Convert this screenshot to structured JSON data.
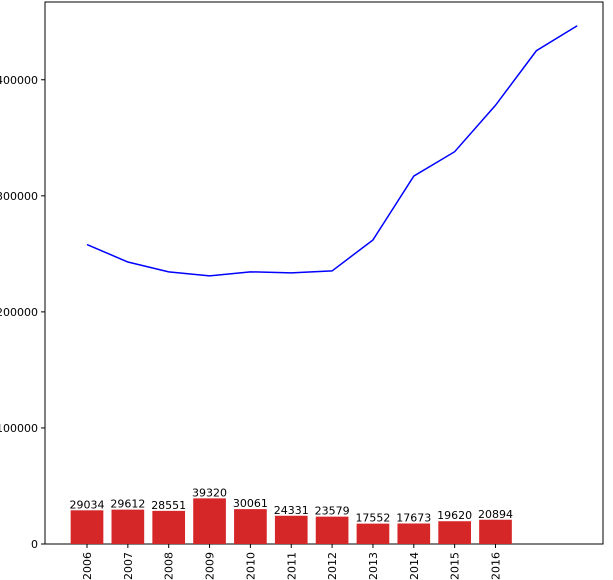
{
  "chart_data": {
    "type": "bar",
    "categories": [
      "2006",
      "2007",
      "2008",
      "2009",
      "2010",
      "2011",
      "2012",
      "2013",
      "2014",
      "2015",
      "2016",
      null,
      null
    ],
    "series": [
      {
        "type": "bar",
        "color": "#d62728",
        "values": [
          29034,
          29612,
          28551,
          39320,
          30061,
          24331,
          23579,
          17552,
          17673,
          19620,
          20894,
          null,
          null
        ]
      },
      {
        "type": "line",
        "color": "#0000ff",
        "values": [
          258000,
          243000,
          234500,
          231000,
          234500,
          233600,
          235300,
          262000,
          317000,
          338000,
          378000,
          425000,
          446500
        ]
      }
    ],
    "ylim": [
      0,
      467000
    ],
    "yticks": [
      0,
      100000,
      200000,
      300000,
      400000
    ]
  }
}
